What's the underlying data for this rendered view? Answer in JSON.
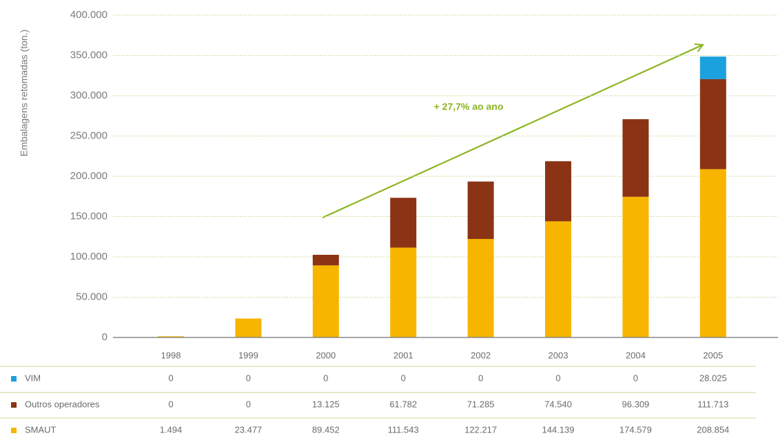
{
  "chart_data": {
    "type": "stacked-bar",
    "y_axis_label": "Embalagens retomadas (ton.)",
    "annotation": "+ 27,7% ao ano",
    "categories": [
      "1998",
      "1999",
      "2000",
      "2001",
      "2002",
      "2003",
      "2004",
      "2005"
    ],
    "series": [
      {
        "name": "VIM",
        "color": "#1ba1dd",
        "values": [
          0,
          0,
          0,
          0,
          0,
          0,
          0,
          28025
        ],
        "value_labels": [
          "0",
          "0",
          "0",
          "0",
          "0",
          "0",
          "0",
          "28.025"
        ]
      },
      {
        "name": "Outros operadores",
        "color": "#8b3415",
        "values": [
          0,
          0,
          13125,
          61782,
          71285,
          74540,
          96309,
          111713
        ],
        "value_labels": [
          "0",
          "0",
          "13.125",
          "61.782",
          "71.285",
          "74.540",
          "96.309",
          "111.713"
        ]
      },
      {
        "name": "SMAUT",
        "color": "#f8b500",
        "values": [
          1494,
          23477,
          89452,
          111543,
          122217,
          144139,
          174579,
          208854
        ],
        "value_labels": [
          "1.494",
          "23.477",
          "89.452",
          "111.543",
          "122.217",
          "144.139",
          "174.579",
          "208.854"
        ]
      }
    ],
    "ylim": [
      0,
      400000
    ],
    "yticks": [
      0,
      {
        "value": 50000,
        "label": "50.000"
      },
      {
        "value": 100000,
        "label": "100.000"
      },
      {
        "value": 150000,
        "label": "150.000"
      },
      {
        "value": 200000,
        "label": "200.000"
      },
      {
        "value": 250000,
        "label": "250.000"
      },
      {
        "value": 300000,
        "label": "300.000"
      },
      {
        "value": 350000,
        "label": "350.000"
      },
      {
        "value": 400000,
        "label": "400.000"
      }
    ],
    "grid": true
  }
}
